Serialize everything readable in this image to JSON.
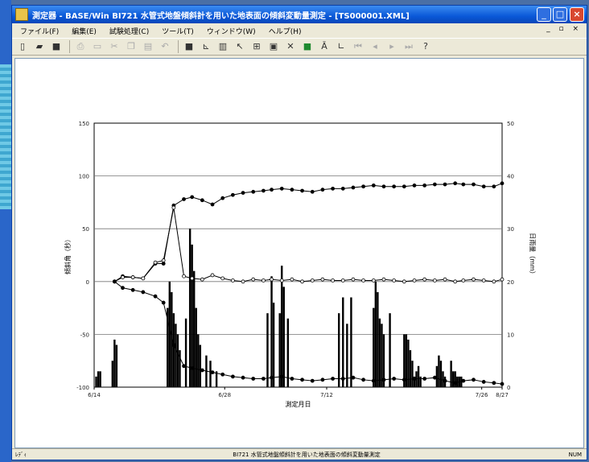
{
  "window": {
    "title": "測定器 - BASE/Win BI721 水管式地盤傾斜計を用いた地表面の傾斜変動量測定 - [TS000001.XML]",
    "minimize_glyph": "_",
    "maximize_glyph": "□",
    "close_glyph": "×"
  },
  "menu": {
    "items": [
      "ファイル(F)",
      "編集(E)",
      "試験処理(C)",
      "ツール(T)",
      "ウィンドウ(W)",
      "ヘルプ(H)"
    ],
    "mdi_controls": "_ ▫ ×"
  },
  "toolbar": {
    "icons": [
      "new-file-icon",
      "open-folder-icon",
      "save-icon",
      "print-icon",
      "print-preview-icon",
      "cut-icon",
      "copy-icon",
      "paste-icon",
      "undo-icon",
      "square-icon",
      "line-tool-icon",
      "chart-icon",
      "pointer-icon",
      "grid-icon",
      "box-select-icon",
      "delete-x-icon",
      "green-box-icon",
      "text-icon",
      "axis-icon",
      "first-icon",
      "prev-icon",
      "next-icon",
      "last-icon",
      "help-icon"
    ]
  },
  "status": {
    "left": "ﾚﾃﾞｨ",
    "center": "BI721 水管式地盤傾斜計を用いた地表面の傾斜変動量測定",
    "right": "NUM"
  },
  "chart_data": {
    "type": "line",
    "xlabel": "測定月日",
    "ylabel_left": "傾斜角（秒）",
    "ylabel_right": "日雨量（mm）",
    "ylim_left": [
      -100,
      150
    ],
    "ylim_right": [
      0,
      50
    ],
    "yticks_left": [
      "150",
      "100",
      "50",
      "0",
      "-50",
      "-100"
    ],
    "yticks_right": [
      "50",
      "40",
      "30",
      "20",
      "10",
      "0"
    ],
    "xticks": [
      "6/14",
      "6/28",
      "7/12",
      "7/26",
      "8/27"
    ],
    "grid": true,
    "series_line": [
      {
        "days": [
          10,
          14,
          19,
          24,
          30,
          34,
          39,
          44,
          48,
          53,
          58,
          63,
          68,
          73,
          78,
          83,
          87,
          92,
          97,
          102,
          107,
          112,
          117,
          122,
          127,
          132,
          137,
          142,
          147,
          152,
          157,
          162,
          167,
          172,
          177,
          181,
          186,
          191,
          196,
          200
        ],
        "values": [
          0,
          5,
          4,
          3,
          17,
          17,
          72,
          78,
          80,
          77,
          73,
          79,
          82,
          84,
          85,
          86,
          87,
          88,
          87,
          86,
          85,
          87,
          88,
          88,
          89,
          90,
          91,
          90,
          90,
          90,
          91,
          91,
          92,
          92,
          93,
          92,
          92,
          90,
          90,
          93
        ]
      },
      {
        "days": [
          10,
          14,
          19,
          24,
          30,
          34,
          39,
          44,
          48,
          53,
          58,
          63,
          68,
          73,
          78,
          83,
          87,
          92,
          97,
          102,
          107,
          112,
          117,
          122,
          127,
          132,
          137,
          142,
          147,
          152,
          157,
          162,
          167,
          172,
          177,
          181,
          186,
          191,
          196,
          200
        ],
        "values": [
          0,
          4,
          4,
          3,
          18,
          20,
          70,
          5,
          3,
          2,
          6,
          3,
          1,
          0,
          2,
          1,
          2,
          1,
          2,
          0,
          1,
          2,
          1,
          1,
          2,
          1,
          1,
          2,
          1,
          0,
          1,
          2,
          1,
          2,
          0,
          1,
          2,
          1,
          0,
          2
        ]
      },
      {
        "days": [
          10,
          14,
          19,
          24,
          30,
          34,
          39,
          44,
          48,
          53,
          58,
          63,
          68,
          73,
          78,
          83,
          87,
          92,
          97,
          102,
          107,
          112,
          117,
          122,
          127,
          132,
          137,
          142,
          147,
          152,
          157,
          162,
          167,
          172,
          177,
          181,
          186,
          191,
          196,
          200
        ],
        "values": [
          0,
          -6,
          -8,
          -10,
          -14,
          -20,
          -60,
          -80,
          -82,
          -84,
          -86,
          -88,
          -90,
          -91,
          -92,
          -92,
          -91,
          -90,
          -92,
          -93,
          -94,
          -93,
          -92,
          -92,
          -91,
          -93,
          -94,
          -93,
          -92,
          -93,
          -92,
          -92,
          -91,
          -94,
          -96,
          -94,
          -93,
          -95,
          -96,
          -97
        ]
      }
    ],
    "rain": {
      "days": [
        1,
        2,
        3,
        9,
        10,
        11,
        36,
        37,
        38,
        39,
        40,
        41,
        42,
        45,
        47,
        48,
        49,
        50,
        51,
        52,
        55,
        57,
        60,
        85,
        87,
        88,
        91,
        92,
        93,
        95,
        120,
        122,
        124,
        126,
        137,
        138,
        139,
        140,
        141,
        142,
        145,
        152,
        153,
        154,
        155,
        156,
        157,
        158,
        159,
        160,
        168,
        169,
        170,
        171,
        172,
        175,
        176,
        177,
        178,
        179,
        180
      ],
      "values": [
        2,
        3,
        3,
        5,
        9,
        8,
        15,
        20,
        18,
        14,
        12,
        10,
        7,
        13,
        30,
        27,
        22,
        15,
        10,
        8,
        6,
        5,
        3,
        14,
        21,
        16,
        14,
        23,
        19,
        13,
        14,
        17,
        12,
        17,
        15,
        20,
        18,
        13,
        12,
        10,
        14,
        10,
        10,
        9,
        7,
        5,
        2,
        3,
        4,
        2,
        4,
        6,
        5,
        3,
        2,
        5,
        3,
        3,
        2,
        2,
        2
      ]
    }
  }
}
